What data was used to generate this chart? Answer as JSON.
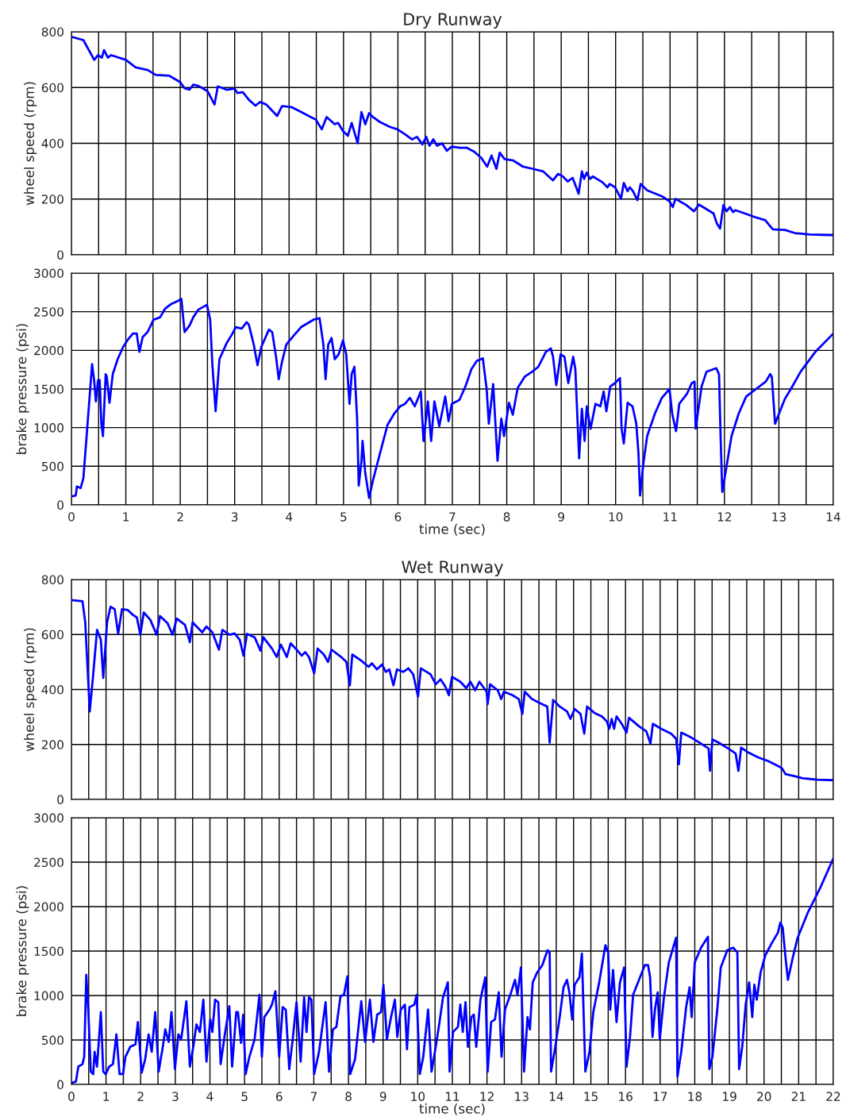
{
  "chart_data": [
    {
      "type": "line",
      "title": "Dry Runway",
      "ylabel": "wheel speed (rpm)",
      "tick_labels": "y",
      "grid": true,
      "color": "#0000ff",
      "xlim": [
        0,
        14
      ],
      "ylim": [
        0,
        800
      ],
      "yticks": [
        0,
        200,
        400,
        600,
        800
      ],
      "xticks": [
        0,
        {
          "value": 0.5,
          "label": null
        },
        1,
        {
          "value": 1.5,
          "label": null
        },
        2,
        {
          "value": 2.5,
          "label": null
        },
        3,
        {
          "value": 3.5,
          "label": null
        },
        4,
        {
          "value": 4.5,
          "label": null
        },
        5,
        {
          "value": 5.5,
          "label": null
        },
        6,
        {
          "value": 6.5,
          "label": null
        },
        7,
        {
          "value": 7.5,
          "label": null
        },
        8,
        {
          "value": 8.5,
          "label": null
        },
        9,
        {
          "value": 9.5,
          "label": null
        },
        10,
        {
          "value": 10.5,
          "label": null
        },
        11,
        {
          "value": 11.5,
          "label": null
        },
        12,
        {
          "value": 12.5,
          "label": null
        },
        13,
        {
          "value": 13.5,
          "label": null
        },
        14
      ],
      "x": [
        0,
        0.22,
        0.42,
        0.49,
        0.56,
        0.6,
        0.67,
        0.73,
        1.0,
        1.18,
        1.4,
        1.55,
        1.8,
        2.0,
        2.08,
        2.17,
        2.24,
        2.33,
        2.5,
        2.56,
        2.63,
        2.69,
        2.85,
        3.0,
        3.05,
        3.15,
        3.26,
        3.38,
        3.47,
        3.58,
        3.67,
        3.78,
        3.87,
        4.04,
        4.22,
        4.4,
        4.49,
        4.6,
        4.69,
        4.84,
        4.9,
        4.99,
        5.08,
        5.15,
        5.26,
        5.33,
        5.4,
        5.47,
        5.54,
        5.67,
        5.85,
        5.99,
        6.13,
        6.26,
        6.35,
        6.45,
        6.52,
        6.58,
        6.65,
        6.72,
        6.81,
        6.9,
        6.99,
        7.13,
        7.26,
        7.4,
        7.53,
        7.64,
        7.72,
        7.81,
        7.87,
        7.96,
        8.12,
        8.3,
        8.48,
        8.67,
        8.85,
        8.94,
        9.03,
        9.12,
        9.21,
        9.32,
        9.38,
        9.42,
        9.47,
        9.53,
        9.58,
        9.76,
        9.85,
        9.89,
        9.99,
        10.1,
        10.15,
        10.22,
        10.26,
        10.32,
        10.4,
        10.46,
        10.58,
        10.85,
        10.99,
        11.05,
        11.1,
        11.3,
        11.44,
        11.53,
        11.66,
        11.8,
        11.86,
        11.92,
        11.98,
        12.04,
        12.1,
        12.16,
        12.2,
        12.38,
        12.56,
        12.75,
        12.8,
        12.89,
        13.11,
        13.29,
        13.56,
        13.92,
        14.0
      ],
      "values": [
        782,
        770,
        699,
        716,
        707,
        734,
        707,
        716,
        699,
        672,
        663,
        645,
        642,
        619,
        597,
        592,
        610,
        606,
        587,
        565,
        539,
        604,
        592,
        596,
        580,
        583,
        556,
        535,
        548,
        539,
        521,
        498,
        533,
        530,
        512,
        494,
        485,
        450,
        494,
        468,
        473,
        444,
        427,
        473,
        400,
        512,
        468,
        508,
        494,
        476,
        459,
        450,
        432,
        414,
        423,
        396,
        423,
        391,
        414,
        391,
        400,
        373,
        388,
        384,
        384,
        370,
        348,
        316,
        356,
        308,
        366,
        343,
        338,
        316,
        308,
        299,
        267,
        290,
        281,
        263,
        276,
        219,
        299,
        272,
        295,
        272,
        281,
        260,
        242,
        254,
        242,
        201,
        258,
        228,
        242,
        228,
        196,
        254,
        231,
        210,
        192,
        171,
        201,
        178,
        156,
        180,
        165,
        148,
        112,
        94,
        178,
        156,
        171,
        153,
        160,
        148,
        135,
        124,
        112,
        91,
        89,
        78,
        73,
        71,
        71
      ]
    },
    {
      "type": "line",
      "ylabel": "brake pressure (psi)",
      "xlabel": "time (sec)",
      "grid": true,
      "color": "#0000ff",
      "xlim": [
        0,
        14
      ],
      "ylim": [
        0,
        3000
      ],
      "yticks": [
        0,
        500,
        1000,
        1500,
        2000,
        2500,
        3000
      ],
      "xticks": [
        0,
        {
          "value": 0.5,
          "label": null
        },
        1,
        {
          "value": 1.5,
          "label": null
        },
        2,
        {
          "value": 2.5,
          "label": null
        },
        3,
        {
          "value": 3.5,
          "label": null
        },
        4,
        {
          "value": 4.5,
          "label": null
        },
        5,
        {
          "value": 5.5,
          "label": null
        },
        6,
        {
          "value": 6.5,
          "label": null
        },
        7,
        {
          "value": 7.5,
          "label": null
        },
        8,
        {
          "value": 8.5,
          "label": null
        },
        9,
        {
          "value": 9.5,
          "label": null
        },
        10,
        {
          "value": 10.5,
          "label": null
        },
        11,
        {
          "value": 11.5,
          "label": null
        },
        12,
        {
          "value": 12.5,
          "label": null
        },
        13,
        {
          "value": 13.5,
          "label": null
        },
        14
      ],
      "x": [
        0,
        0.08,
        0.1,
        0.17,
        0.22,
        0.29,
        0.38,
        0.42,
        0.45,
        0.49,
        0.52,
        0.55,
        0.58,
        0.63,
        0.65,
        0.7,
        0.76,
        0.85,
        0.95,
        1.04,
        1.13,
        1.2,
        1.25,
        1.31,
        1.4,
        1.51,
        1.63,
        1.72,
        1.84,
        1.96,
        2.02,
        2.08,
        2.17,
        2.24,
        2.33,
        2.49,
        2.55,
        2.59,
        2.65,
        2.72,
        2.85,
        2.95,
        3.02,
        3.13,
        3.22,
        3.26,
        3.35,
        3.42,
        3.49,
        3.63,
        3.69,
        3.76,
        3.81,
        3.87,
        3.95,
        4.08,
        4.22,
        4.45,
        4.56,
        4.63,
        4.67,
        4.72,
        4.78,
        4.84,
        4.91,
        4.99,
        5.05,
        5.11,
        5.15,
        5.2,
        5.25,
        5.28,
        5.33,
        5.35,
        5.4,
        5.47,
        5.54,
        5.67,
        5.81,
        5.93,
        6.04,
        6.13,
        6.22,
        6.31,
        6.42,
        6.47,
        6.55,
        6.61,
        6.67,
        6.76,
        6.87,
        6.93,
        6.99,
        7.13,
        7.24,
        7.35,
        7.45,
        7.56,
        7.63,
        7.67,
        7.75,
        7.83,
        7.9,
        7.95,
        8.04,
        8.11,
        8.2,
        8.33,
        8.47,
        8.58,
        8.72,
        8.81,
        8.85,
        8.91,
        8.99,
        9.06,
        9.13,
        9.22,
        9.26,
        9.33,
        9.38,
        9.43,
        9.47,
        9.54,
        9.63,
        9.72,
        9.78,
        9.83,
        9.9,
        9.99,
        10.08,
        10.11,
        10.15,
        10.22,
        10.31,
        10.38,
        10.42,
        10.45,
        10.51,
        10.58,
        10.72,
        10.85,
        10.99,
        11.04,
        11.11,
        11.17,
        11.31,
        11.4,
        11.45,
        11.47,
        11.58,
        11.67,
        11.85,
        11.9,
        11.93,
        11.96,
        12.04,
        12.13,
        12.26,
        12.4,
        12.58,
        12.76,
        12.84,
        12.87,
        12.93,
        13.02,
        13.11,
        13.22,
        13.4,
        13.67,
        14.0
      ],
      "values": [
        109,
        122,
        237,
        218,
        346,
        987,
        1821,
        1596,
        1340,
        1615,
        1615,
        1051,
        891,
        1692,
        1660,
        1321,
        1692,
        1885,
        2045,
        2141,
        2218,
        2218,
        1981,
        2173,
        2237,
        2397,
        2429,
        2538,
        2603,
        2641,
        2667,
        2237,
        2321,
        2429,
        2526,
        2590,
        2397,
        1821,
        1212,
        1885,
        2090,
        2205,
        2301,
        2282,
        2365,
        2333,
        2077,
        1808,
        2045,
        2269,
        2237,
        1917,
        1628,
        1853,
        2077,
        2186,
        2301,
        2397,
        2417,
        2077,
        1628,
        2077,
        2160,
        1885,
        1949,
        2128,
        1949,
        1308,
        1692,
        1788,
        1115,
        250,
        571,
        827,
        410,
        90,
        314,
        667,
        1038,
        1179,
        1276,
        1308,
        1385,
        1276,
        1468,
        827,
        1340,
        827,
        1340,
        1019,
        1404,
        1083,
        1308,
        1359,
        1532,
        1756,
        1865,
        1897,
        1500,
        1051,
        1564,
        571,
        1115,
        891,
        1321,
        1167,
        1513,
        1660,
        1724,
        1788,
        1981,
        2026,
        1917,
        1551,
        1949,
        1917,
        1577,
        1917,
        1756,
        603,
        1244,
        827,
        1276,
        987,
        1308,
        1276,
        1468,
        1212,
        1532,
        1577,
        1641,
        987,
        795,
        1321,
        1276,
        1051,
        667,
        122,
        538,
        891,
        1179,
        1385,
        1500,
        1179,
        955,
        1308,
        1436,
        1577,
        1596,
        987,
        1532,
        1724,
        1769,
        1692,
        859,
        167,
        506,
        891,
        1179,
        1404,
        1500,
        1596,
        1692,
        1660,
        1051,
        1212,
        1372,
        1500,
        1724,
        1981,
        2218
      ]
    },
    {
      "type": "line",
      "title": "Wet Runway",
      "ylabel": "wheel speed (rpm)",
      "tick_labels": "y",
      "grid": true,
      "color": "#0000ff",
      "xlim": [
        0,
        22
      ],
      "ylim": [
        0,
        800
      ],
      "yticks": [
        0,
        200,
        400,
        600,
        800
      ],
      "xticks": [
        0,
        {
          "value": 0.5,
          "label": null
        },
        1,
        {
          "value": 1.5,
          "label": null
        },
        2,
        {
          "value": 2.5,
          "label": null
        },
        3,
        {
          "value": 3.5,
          "label": null
        },
        4,
        {
          "value": 4.5,
          "label": null
        },
        5,
        {
          "value": 5.5,
          "label": null
        },
        6,
        {
          "value": 6.5,
          "label": null
        },
        7,
        {
          "value": 7.5,
          "label": null
        },
        8,
        {
          "value": 8.5,
          "label": null
        },
        9,
        {
          "value": 9.5,
          "label": null
        },
        10,
        {
          "value": 10.5,
          "label": null
        },
        11,
        {
          "value": 11.5,
          "label": null
        },
        12,
        {
          "value": 12.5,
          "label": null
        },
        13,
        {
          "value": 13.5,
          "label": null
        },
        14,
        {
          "value": 14.5,
          "label": null
        },
        15,
        {
          "value": 15.5,
          "label": null
        },
        16,
        {
          "value": 16.5,
          "label": null
        },
        17,
        {
          "value": 17.5,
          "label": null
        },
        18,
        {
          "value": 18.5,
          "label": null
        },
        19,
        {
          "value": 19.5,
          "label": null
        },
        20,
        {
          "value": 20.5,
          "label": null
        },
        21,
        {
          "value": 21.5,
          "label": null
        },
        22
      ],
      "x": [
        0,
        0.32,
        0.4,
        0.53,
        0.63,
        0.74,
        0.85,
        0.92,
        1.03,
        1.13,
        1.25,
        1.35,
        1.46,
        1.63,
        1.78,
        1.89,
        1.99,
        2.09,
        2.28,
        2.46,
        2.56,
        2.78,
        2.92,
        3.04,
        3.28,
        3.42,
        3.5,
        3.78,
        3.9,
        4.07,
        4.26,
        4.36,
        4.57,
        4.71,
        4.86,
        4.97,
        5.07,
        5.29,
        5.46,
        5.54,
        5.79,
        5.93,
        6.05,
        6.22,
        6.33,
        6.53,
        6.65,
        6.75,
        6.86,
        7.01,
        7.11,
        7.29,
        7.41,
        7.51,
        7.79,
        7.94,
        8.04,
        8.11,
        8.37,
        8.58,
        8.68,
        8.82,
        8.97,
        9.08,
        9.18,
        9.3,
        9.4,
        9.58,
        9.73,
        9.87,
        10.01,
        10.09,
        10.37,
        10.52,
        10.66,
        10.8,
        10.9,
        10.99,
        11.23,
        11.4,
        11.52,
        11.66,
        11.78,
        11.99,
        12.02,
        12.09,
        12.31,
        12.41,
        12.49,
        12.74,
        12.92,
        13.02,
        13.09,
        13.3,
        13.52,
        13.74,
        13.81,
        13.91,
        14.1,
        14.31,
        14.41,
        14.53,
        14.7,
        14.81,
        14.89,
        15.1,
        15.32,
        15.46,
        15.53,
        15.6,
        15.67,
        15.74,
        15.89,
        16.03,
        16.1,
        16.39,
        16.6,
        16.72,
        16.79,
        17.03,
        17.32,
        17.46,
        17.54,
        17.61,
        17.9,
        18.18,
        18.4,
        18.44,
        18.51,
        18.68,
        18.97,
        19.18,
        19.26,
        19.34,
        19.54,
        19.83,
        20.11,
        20.4,
        20.52,
        20.62,
        20.83,
        21.12,
        21.55,
        22.0
      ],
      "values": [
        725,
        721,
        644,
        320,
        455,
        617,
        581,
        442,
        644,
        701,
        692,
        602,
        692,
        689,
        671,
        662,
        599,
        680,
        653,
        599,
        667,
        640,
        599,
        658,
        635,
        572,
        644,
        608,
        629,
        608,
        545,
        617,
        599,
        604,
        581,
        523,
        602,
        590,
        541,
        590,
        549,
        518,
        563,
        518,
        568,
        541,
        523,
        536,
        518,
        459,
        549,
        527,
        500,
        545,
        518,
        500,
        415,
        527,
        505,
        482,
        495,
        473,
        491,
        464,
        473,
        415,
        473,
        464,
        477,
        455,
        374,
        477,
        455,
        419,
        437,
        410,
        379,
        446,
        428,
        405,
        428,
        397,
        428,
        392,
        347,
        419,
        397,
        365,
        392,
        379,
        365,
        311,
        392,
        365,
        351,
        338,
        207,
        362,
        338,
        320,
        293,
        329,
        311,
        239,
        338,
        315,
        302,
        284,
        257,
        293,
        257,
        302,
        275,
        243,
        297,
        266,
        248,
        203,
        275,
        257,
        239,
        221,
        128,
        243,
        225,
        203,
        185,
        104,
        218,
        207,
        185,
        167,
        104,
        189,
        171,
        153,
        140,
        122,
        113,
        92,
        86,
        77,
        72,
        70
      ]
    },
    {
      "type": "line",
      "ylabel": "brake pressure (psi)",
      "xlabel": "time (sec)",
      "grid": true,
      "color": "#0000ff",
      "xlim": [
        0,
        22
      ],
      "ylim": [
        0,
        3000
      ],
      "yticks": [
        0,
        500,
        1000,
        1500,
        2000,
        2500,
        3000
      ],
      "xticks": [
        0,
        {
          "value": 0.5,
          "label": null
        },
        1,
        {
          "value": 1.5,
          "label": null
        },
        2,
        {
          "value": 2.5,
          "label": null
        },
        3,
        {
          "value": 3.5,
          "label": null
        },
        4,
        {
          "value": 4.5,
          "label": null
        },
        5,
        {
          "value": 5.5,
          "label": null
        },
        6,
        {
          "value": 6.5,
          "label": null
        },
        7,
        {
          "value": 7.5,
          "label": null
        },
        8,
        {
          "value": 8.5,
          "label": null
        },
        9,
        {
          "value": 9.5,
          "label": null
        },
        10,
        {
          "value": 10.5,
          "label": null
        },
        11,
        {
          "value": 11.5,
          "label": null
        },
        12,
        {
          "value": 12.5,
          "label": null
        },
        13,
        {
          "value": 13.5,
          "label": null
        },
        14,
        {
          "value": 14.5,
          "label": null
        },
        15,
        {
          "value": 15.5,
          "label": null
        },
        16,
        {
          "value": 16.5,
          "label": null
        },
        17,
        {
          "value": 17.5,
          "label": null
        },
        18,
        {
          "value": 18.5,
          "label": null
        },
        19,
        {
          "value": 19.5,
          "label": null
        },
        20,
        {
          "value": 20.5,
          "label": null
        },
        21,
        {
          "value": 21.5,
          "label": null
        },
        22
      ],
      "x": [
        0,
        0.13,
        0.2,
        0.32,
        0.37,
        0.43,
        0.49,
        0.56,
        0.63,
        0.67,
        0.74,
        0.85,
        0.92,
        0.99,
        1.09,
        1.2,
        1.3,
        1.39,
        1.49,
        1.56,
        1.7,
        1.85,
        1.92,
        2.03,
        2.13,
        2.23,
        2.32,
        2.42,
        2.52,
        2.64,
        2.71,
        2.81,
        2.89,
        2.99,
        3.09,
        3.17,
        3.32,
        3.42,
        3.52,
        3.61,
        3.71,
        3.81,
        3.9,
        4.01,
        4.07,
        4.15,
        4.24,
        4.31,
        4.43,
        4.56,
        4.64,
        4.76,
        4.81,
        4.9,
        4.96,
        5.03,
        5.14,
        5.29,
        5.43,
        5.5,
        5.57,
        5.72,
        5.79,
        5.89,
        6.0,
        6.1,
        6.19,
        6.29,
        6.39,
        6.5,
        6.62,
        6.72,
        6.79,
        6.86,
        6.93,
        7.01,
        7.15,
        7.34,
        7.44,
        7.55,
        7.65,
        7.77,
        7.87,
        7.97,
        8.05,
        8.19,
        8.37,
        8.48,
        8.62,
        8.72,
        8.83,
        8.94,
        9.01,
        9.11,
        9.23,
        9.34,
        9.41,
        9.51,
        9.63,
        9.69,
        9.76,
        9.9,
        9.97,
        10.06,
        10.16,
        10.3,
        10.4,
        10.52,
        10.63,
        10.73,
        10.87,
        10.92,
        11.02,
        11.16,
        11.23,
        11.3,
        11.38,
        11.45,
        11.55,
        11.62,
        11.69,
        11.81,
        11.95,
        12.02,
        12.12,
        12.23,
        12.34,
        12.42,
        12.52,
        12.66,
        12.81,
        12.88,
        12.98,
        13.07,
        13.17,
        13.24,
        13.32,
        13.45,
        13.6,
        13.75,
        13.81,
        13.85,
        13.95,
        14.1,
        14.21,
        14.31,
        14.38,
        14.46,
        14.53,
        14.67,
        14.74,
        14.84,
        14.96,
        15.07,
        15.24,
        15.42,
        15.5,
        15.56,
        15.64,
        15.74,
        15.84,
        15.96,
        16.03,
        16.13,
        16.22,
        16.39,
        16.56,
        16.65,
        16.71,
        16.78,
        16.85,
        16.93,
        16.99,
        17.11,
        17.25,
        17.46,
        17.5,
        17.61,
        17.75,
        17.85,
        17.91,
        18.0,
        18.18,
        18.38,
        18.42,
        18.51,
        18.65,
        18.75,
        18.94,
        19.11,
        19.23,
        19.28,
        19.37,
        19.47,
        19.57,
        19.66,
        19.72,
        19.79,
        19.9,
        20.04,
        20.23,
        20.4,
        20.47,
        20.54,
        20.62,
        20.69,
        20.83,
        20.97,
        21.26,
        21.62,
        22.0
      ],
      "values": [
        17,
        33,
        201,
        229,
        312,
        1233,
        814,
        145,
        117,
        368,
        201,
        814,
        145,
        117,
        201,
        229,
        563,
        117,
        117,
        312,
        424,
        452,
        703,
        134,
        284,
        563,
        368,
        814,
        145,
        424,
        619,
        480,
        814,
        173,
        563,
        508,
        937,
        201,
        424,
        675,
        591,
        954,
        257,
        731,
        591,
        954,
        926,
        229,
        563,
        881,
        201,
        814,
        814,
        468,
        786,
        117,
        312,
        508,
        1009,
        312,
        758,
        842,
        898,
        1049,
        312,
        870,
        842,
        173,
        508,
        926,
        257,
        982,
        591,
        982,
        954,
        117,
        368,
        926,
        145,
        619,
        647,
        993,
        1009,
        1216,
        117,
        284,
        937,
        480,
        954,
        480,
        786,
        814,
        1121,
        508,
        758,
        954,
        535,
        842,
        898,
        396,
        870,
        898,
        1009,
        117,
        312,
        842,
        145,
        424,
        703,
        982,
        1149,
        145,
        591,
        647,
        898,
        591,
        926,
        424,
        758,
        786,
        424,
        954,
        1205,
        145,
        703,
        731,
        1037,
        312,
        842,
        993,
        1177,
        1009,
        1316,
        145,
        758,
        619,
        1149,
        1260,
        1344,
        1511,
        1484,
        145,
        368,
        758,
        1093,
        1177,
        1037,
        731,
        1121,
        1205,
        1472,
        145,
        368,
        814,
        1149,
        1567,
        1484,
        842,
        1288,
        703,
        1149,
        1316,
        201,
        535,
        1009,
        1177,
        1344,
        1344,
        1205,
        535,
        842,
        1037,
        508,
        982,
        1372,
        1651,
        89,
        368,
        870,
        1093,
        758,
        1372,
        1539,
        1662,
        173,
        312,
        842,
        1316,
        1511,
        1539,
        1484,
        173,
        424,
        898,
        1149,
        758,
        1121,
        954,
        1260,
        1456,
        1595,
        1707,
        1818,
        1762,
        1428,
        1177,
        1428,
        1651,
        1930,
        2209,
        2543
      ]
    }
  ]
}
